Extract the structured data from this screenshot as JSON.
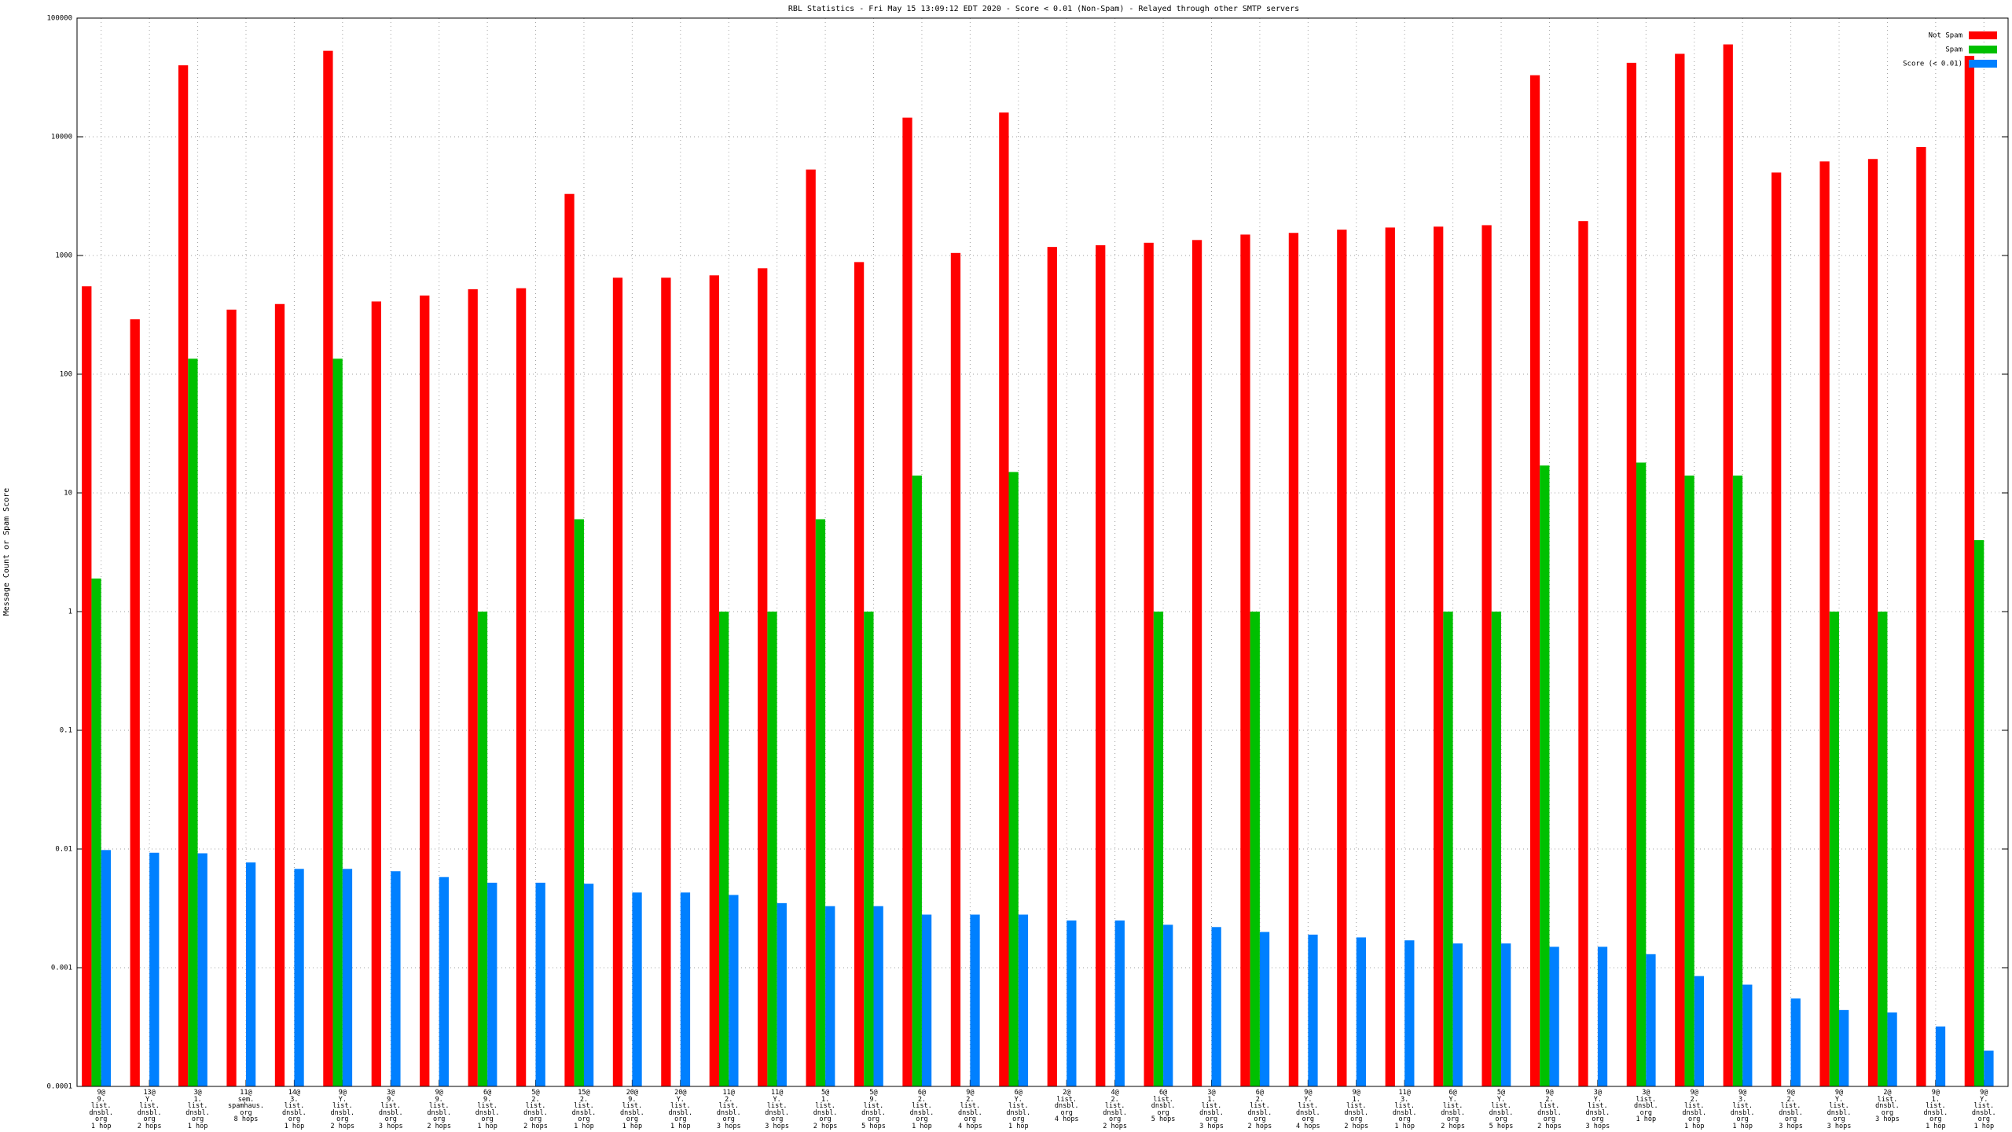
{
  "chart_data": {
    "type": "bar",
    "title": "RBL Statistics - Fri May 15 13:09:12 EDT 2020 - Score < 0.01 (Non-Spam) - Relayed through other SMTP servers",
    "y_label": "Message Count or Spam Score",
    "log_scale": true,
    "grid": true,
    "legend": "top-right",
    "ylim": [
      0.0001,
      100000
    ],
    "yticks": [
      0.0001,
      0.001,
      0.01,
      0.1,
      1,
      10,
      100,
      1000,
      10000,
      100000
    ],
    "categories": [
      "9@\n9.\nlist.\ndnsbl.\norg\n1 hop",
      "13@\nY.\nlist.\ndnsbl.\norg\n2 hops",
      "3@\n1.\nlist.\ndnsbl.\norg\n1 hop",
      "11@\nsem.\nspamhaus.\norg\n8 hops",
      "14@\n3.\nlist.\ndnsbl.\norg\n1 hop",
      "9@\nY.\nlist.\ndnsbl.\norg\n2 hops",
      "3@\n9.\nlist.\ndnsbl.\norg\n3 hops",
      "9@\n9.\nlist.\ndnsbl.\norg\n2 hops",
      "6@\n9.\nlist.\ndnsbl.\norg\n1 hop",
      "5@\n2.\nlist.\ndnsbl.\norg\n2 hops",
      "15@\n2.\nlist.\ndnsbl.\norg\n1 hop",
      "20@\n9.\nlist.\ndnsbl.\norg\n1 hop",
      "20@\nY.\nlist.\ndnsbl.\norg\n1 hop",
      "11@\n2.\nlist.\ndnsbl.\norg\n3 hops",
      "11@\nY.\nlist.\ndnsbl.\norg\n3 hops",
      "5@\n1.\nlist.\ndnsbl.\norg\n2 hops",
      "5@\n9.\nlist.\ndnsbl.\norg\n5 hops",
      "6@\n2.\nlist.\ndnsbl.\norg\n1 hop",
      "9@\n2.\nlist.\ndnsbl.\norg\n4 hops",
      "6@\nY.\nlist.\ndnsbl.\norg\n1 hop",
      "2@\nlist.\ndnsbl.\norg\n4 hops",
      "4@\n2.\nlist.\ndnsbl.\norg\n2 hops",
      "6@\nlist.\ndnsbl.\norg\n5 hops",
      "3@\n1.\nlist.\ndnsbl.\norg\n3 hops",
      "6@\n2.\nlist.\ndnsbl.\norg\n2 hops",
      "9@\nY.\nlist.\ndnsbl.\norg\n4 hops",
      "9@\n1.\nlist.\ndnsbl.\norg\n2 hops",
      "11@\n3.\nlist.\ndnsbl.\norg\n1 hop",
      "6@\nY.\nlist.\ndnsbl.\norg\n2 hops",
      "5@\nY.\nlist.\ndnsbl.\norg\n5 hops",
      "9@\n2.\nlist.\ndnsbl.\norg\n2 hops",
      "3@\nY.\nlist.\ndnsbl.\norg\n3 hops",
      "3@\nlist.\ndnsbl.\norg\n1 hop",
      "9@\n2.\nlist.\ndnsbl.\norg\n1 hop",
      "9@\n3.\nlist.\ndnsbl.\norg\n1 hop",
      "9@\n2.\nlist.\ndnsbl.\norg\n3 hops",
      "9@\nY.\nlist.\ndnsbl.\norg\n3 hops",
      "2@\nlist.\ndnsbl.\norg\n3 hops",
      "9@\n1.\nlist.\ndnsbl.\norg\n1 hop",
      "9@\nY.\nlist.\ndnsbl.\norg\n1 hop"
    ],
    "series": [
      {
        "name": "Not Spam",
        "color": "#ff0000",
        "values": [
          550,
          290,
          40000,
          350,
          390,
          53000,
          410,
          460,
          520,
          530,
          3300,
          650,
          650,
          680,
          780,
          5300,
          880,
          14500,
          1050,
          16000,
          1180,
          1220,
          1280,
          1350,
          1500,
          1550,
          1650,
          1720,
          1750,
          1800,
          33000,
          1950,
          42000,
          50000,
          60000,
          5000,
          6200,
          6500,
          8200,
          48000
        ]
      },
      {
        "name": "Spam",
        "color": "#00c000",
        "values": [
          1.9,
          null,
          135,
          null,
          null,
          135,
          null,
          null,
          1,
          null,
          6,
          null,
          null,
          1,
          1,
          6,
          1,
          14,
          null,
          15,
          null,
          null,
          1,
          null,
          1,
          null,
          null,
          null,
          1,
          1,
          17,
          null,
          18,
          14,
          14,
          null,
          1,
          1,
          null,
          4
        ]
      },
      {
        "name": "Score (< 0.01)",
        "color": "#0080ff",
        "values": [
          0.0098,
          0.0093,
          0.0092,
          0.0077,
          0.0068,
          0.0068,
          0.0065,
          0.0058,
          0.0052,
          0.0052,
          0.0051,
          0.0043,
          0.0043,
          0.0041,
          0.0035,
          0.0033,
          0.0033,
          0.0028,
          0.0028,
          0.0028,
          0.0025,
          0.0025,
          0.0023,
          0.0022,
          0.002,
          0.0019,
          0.0018,
          0.0017,
          0.0016,
          0.0016,
          0.0015,
          0.0015,
          0.0013,
          0.00085,
          0.00072,
          0.00055,
          0.00044,
          0.00042,
          0.00032,
          0.0002
        ]
      }
    ]
  }
}
